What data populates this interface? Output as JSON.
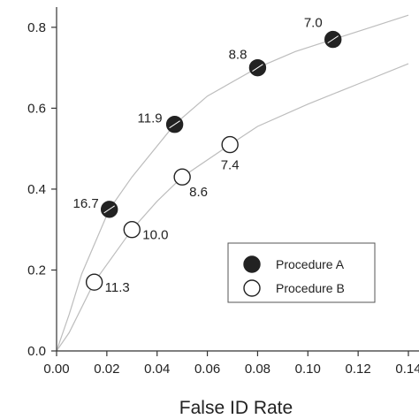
{
  "chart_data": {
    "type": "scatter",
    "xlabel": "False ID Rate",
    "ylabel": "",
    "xlim": [
      0,
      0.14
    ],
    "ylim": [
      0,
      0.85
    ],
    "x_ticks": [
      "0.00",
      "0.02",
      "0.04",
      "0.06",
      "0.08",
      "0.10",
      "0.12",
      "0.14"
    ],
    "y_ticks": [
      "0.0",
      "0.2",
      "0.4",
      "0.6",
      "0.8"
    ],
    "grid": false,
    "legend_position": "bottom-right",
    "series": [
      {
        "name": "Procedure A",
        "marker": "filled-circle",
        "color": "#222222",
        "points": [
          {
            "x": 0.021,
            "y": 0.35,
            "label": "16.7"
          },
          {
            "x": 0.047,
            "y": 0.56,
            "label": "11.9"
          },
          {
            "x": 0.08,
            "y": 0.7,
            "label": "8.8"
          },
          {
            "x": 0.11,
            "y": 0.77,
            "label": "7.0"
          }
        ]
      },
      {
        "name": "Procedure B",
        "marker": "open-circle",
        "color": "#222222",
        "points": [
          {
            "x": 0.015,
            "y": 0.17,
            "label": "11.3"
          },
          {
            "x": 0.03,
            "y": 0.3,
            "label": "10.0"
          },
          {
            "x": 0.05,
            "y": 0.43,
            "label": "8.6"
          },
          {
            "x": 0.069,
            "y": 0.51,
            "label": "7.4"
          }
        ]
      }
    ],
    "curves": [
      {
        "points": [
          [
            0,
            0
          ],
          [
            0.005,
            0.09
          ],
          [
            0.01,
            0.19
          ],
          [
            0.021,
            0.35
          ],
          [
            0.03,
            0.43
          ],
          [
            0.047,
            0.56
          ],
          [
            0.06,
            0.63
          ],
          [
            0.08,
            0.7
          ],
          [
            0.095,
            0.74
          ],
          [
            0.11,
            0.77
          ],
          [
            0.125,
            0.8
          ],
          [
            0.14,
            0.83
          ]
        ]
      },
      {
        "points": [
          [
            0,
            0
          ],
          [
            0.005,
            0.045
          ],
          [
            0.015,
            0.17
          ],
          [
            0.03,
            0.3
          ],
          [
            0.04,
            0.37
          ],
          [
            0.05,
            0.43
          ],
          [
            0.069,
            0.51
          ],
          [
            0.08,
            0.555
          ],
          [
            0.1,
            0.61
          ],
          [
            0.12,
            0.66
          ],
          [
            0.14,
            0.71
          ]
        ]
      }
    ],
    "curve_color": "#bdbdbd"
  }
}
